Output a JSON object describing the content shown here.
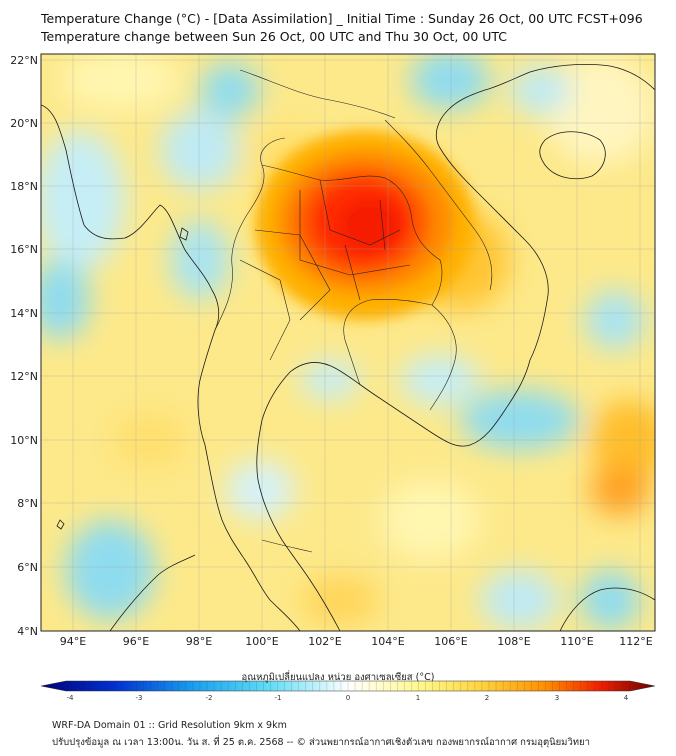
{
  "header": {
    "title_line1": "Temperature Change (°C) - [Data Assimilation] _ Initial Time : Sunday 26 Oct, 00 UTC FCST+096",
    "title_line2": "Temperature change between Sun 26 Oct, 00 UTC and Thu 30 Oct, 00 UTC"
  },
  "map": {
    "lat_labels": [
      "22°N",
      "20°N",
      "18°N",
      "16°N",
      "14°N",
      "12°N",
      "10°N",
      "8°N",
      "6°N",
      "4°N"
    ],
    "lat_values": [
      22,
      20,
      18,
      16,
      14,
      12,
      10,
      8,
      6,
      4
    ],
    "lon_labels": [
      "94°E",
      "96°E",
      "98°E",
      "100°E",
      "102°E",
      "104°E",
      "106°E",
      "108°E",
      "110°E",
      "112°E"
    ],
    "lon_values": [
      94,
      96,
      98,
      100,
      102,
      104,
      106,
      108,
      110,
      112
    ],
    "extent": {
      "lon_min": 93,
      "lon_max": 112.5,
      "lat_min": 4,
      "lat_max": 22.2
    },
    "field_description": "temperature change warm core over northeast Thailand / Laos"
  },
  "colorbar": {
    "title": "อุณหภูมิเปลี่ยนแปลง หน่วย องศาเซลเซียส (°C)",
    "ticks": [
      "-4",
      "-3",
      "-2",
      "-1",
      "0",
      "1",
      "2",
      "3",
      "4"
    ],
    "tick_values": [
      -4,
      -3,
      -2,
      -1,
      0,
      1,
      2,
      3,
      4
    ],
    "colors": {
      "cold": "#00007a",
      "cool": "#16c8f0",
      "neutral": "#ffffff",
      "warm_light": "#fff8a0",
      "warm": "#ffb400",
      "hot": "#ff2a00",
      "max": "#7a0000"
    }
  },
  "footer": {
    "line1": "WRF-DA Domain 01 :: Grid Resolution 9km x 9km",
    "line2": "ปรับปรุงข้อมูล ณ เวลา 13:00น. วัน ส. ที่ 25 ต.ค. 2568 -- © ส่วนพยากรณ์อากาศเชิงตัวเลข กองพยากรณ์อากาศ กรมอุตุนิยมวิทยา"
  }
}
